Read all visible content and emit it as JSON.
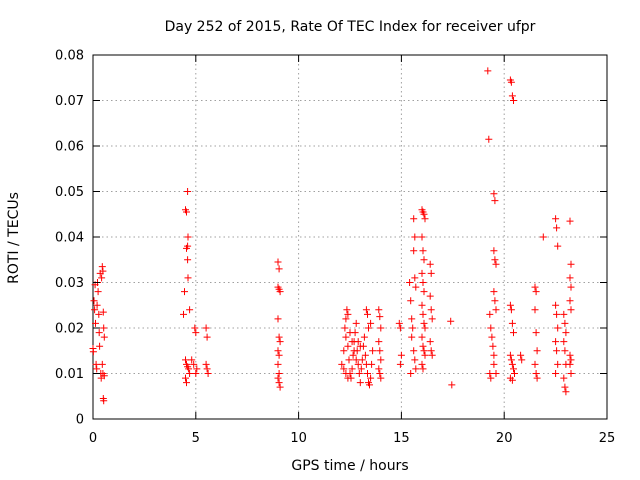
{
  "chart_data": {
    "type": "scatter",
    "title": "Day 252 of 2015, Rate Of TEC Index for receiver ufpr",
    "xlabel": "GPS time / hours",
    "ylabel": "ROTI / TECUs",
    "xlim": [
      0,
      25
    ],
    "ylim": [
      0,
      0.08
    ],
    "xticks": [
      "0",
      "5",
      "10",
      "15",
      "20",
      "25"
    ],
    "yticks": [
      "0",
      "0.01",
      "0.02",
      "0.03",
      "0.04",
      "0.05",
      "0.06",
      "0.07",
      "0.08"
    ],
    "grid": true,
    "legend": "none",
    "marker": "+",
    "color": "#ff0000",
    "points": [
      [
        0.0,
        0.0155
      ],
      [
        0.02,
        0.0148
      ],
      [
        0.05,
        0.026
      ],
      [
        0.08,
        0.024
      ],
      [
        0.1,
        0.0295
      ],
      [
        0.12,
        0.021
      ],
      [
        0.15,
        0.012
      ],
      [
        0.18,
        0.011
      ],
      [
        0.2,
        0.025
      ],
      [
        0.22,
        0.03
      ],
      [
        0.25,
        0.028
      ],
      [
        0.28,
        0.023
      ],
      [
        0.3,
        0.019
      ],
      [
        0.32,
        0.016
      ],
      [
        0.35,
        0.032
      ],
      [
        0.38,
        0.01
      ],
      [
        0.4,
        0.009
      ],
      [
        0.42,
        0.031
      ],
      [
        0.45,
        0.0335
      ],
      [
        0.48,
        0.0325
      ],
      [
        0.5,
        0.0235
      ],
      [
        0.52,
        0.02
      ],
      [
        0.55,
        0.018
      ],
      [
        0.48,
        0.01
      ],
      [
        0.5,
        0.0045
      ],
      [
        0.52,
        0.004
      ],
      [
        0.55,
        0.0095
      ],
      [
        0.45,
        0.012
      ],
      [
        4.4,
        0.023
      ],
      [
        4.45,
        0.028
      ],
      [
        4.5,
        0.046
      ],
      [
        4.55,
        0.0455
      ],
      [
        4.6,
        0.05
      ],
      [
        4.55,
        0.0375
      ],
      [
        4.6,
        0.038
      ],
      [
        4.62,
        0.04
      ],
      [
        4.6,
        0.035
      ],
      [
        4.62,
        0.031
      ],
      [
        4.5,
        0.013
      ],
      [
        4.55,
        0.012
      ],
      [
        4.6,
        0.0115
      ],
      [
        4.65,
        0.011
      ],
      [
        4.7,
        0.01
      ],
      [
        4.5,
        0.009
      ],
      [
        4.55,
        0.008
      ],
      [
        4.7,
        0.024
      ],
      [
        4.8,
        0.013
      ],
      [
        4.9,
        0.012
      ],
      [
        4.95,
        0.02
      ],
      [
        5.0,
        0.019
      ],
      [
        5.05,
        0.011
      ],
      [
        5.0,
        0.01
      ],
      [
        5.5,
        0.02
      ],
      [
        5.55,
        0.018
      ],
      [
        5.5,
        0.012
      ],
      [
        5.55,
        0.011
      ],
      [
        5.6,
        0.01
      ],
      [
        9.0,
        0.0345
      ],
      [
        9.05,
        0.033
      ],
      [
        9.0,
        0.029
      ],
      [
        9.05,
        0.0285
      ],
      [
        9.1,
        0.028
      ],
      [
        9.0,
        0.022
      ],
      [
        9.05,
        0.018
      ],
      [
        9.1,
        0.017
      ],
      [
        9.0,
        0.015
      ],
      [
        9.05,
        0.014
      ],
      [
        9.0,
        0.012
      ],
      [
        9.05,
        0.01
      ],
      [
        9.0,
        0.009
      ],
      [
        9.05,
        0.008
      ],
      [
        9.1,
        0.007
      ],
      [
        12.1,
        0.012
      ],
      [
        12.2,
        0.015
      ],
      [
        12.25,
        0.02
      ],
      [
        12.3,
        0.022
      ],
      [
        12.35,
        0.024
      ],
      [
        12.4,
        0.016
      ],
      [
        12.45,
        0.013
      ],
      [
        12.5,
        0.01
      ],
      [
        12.55,
        0.009
      ],
      [
        12.6,
        0.011
      ],
      [
        12.65,
        0.014
      ],
      [
        12.7,
        0.017
      ],
      [
        12.75,
        0.019
      ],
      [
        12.8,
        0.021
      ],
      [
        12.85,
        0.015
      ],
      [
        12.9,
        0.012
      ],
      [
        12.95,
        0.01
      ],
      [
        13.0,
        0.008
      ],
      [
        13.05,
        0.011
      ],
      [
        13.1,
        0.013
      ],
      [
        13.15,
        0.016
      ],
      [
        13.2,
        0.018
      ],
      [
        13.25,
        0.014
      ],
      [
        13.3,
        0.012
      ],
      [
        13.35,
        0.01
      ],
      [
        13.4,
        0.008
      ],
      [
        13.45,
        0.0075
      ],
      [
        13.5,
        0.009
      ],
      [
        13.55,
        0.012
      ],
      [
        13.6,
        0.015
      ],
      [
        13.3,
        0.024
      ],
      [
        13.35,
        0.023
      ],
      [
        13.4,
        0.02
      ],
      [
        13.5,
        0.021
      ],
      [
        12.3,
        0.018
      ],
      [
        12.4,
        0.023
      ],
      [
        12.5,
        0.019
      ],
      [
        12.6,
        0.017
      ],
      [
        12.7,
        0.015
      ],
      [
        12.8,
        0.013
      ],
      [
        12.2,
        0.011
      ],
      [
        12.3,
        0.01
      ],
      [
        12.4,
        0.009
      ],
      [
        12.9,
        0.017
      ],
      [
        13.0,
        0.016
      ],
      [
        13.9,
        0.024
      ],
      [
        13.95,
        0.0225
      ],
      [
        14.0,
        0.02
      ],
      [
        13.9,
        0.017
      ],
      [
        13.95,
        0.015
      ],
      [
        14.0,
        0.013
      ],
      [
        13.9,
        0.011
      ],
      [
        13.95,
        0.01
      ],
      [
        14.0,
        0.009
      ],
      [
        14.9,
        0.021
      ],
      [
        14.95,
        0.02
      ],
      [
        15.0,
        0.014
      ],
      [
        14.95,
        0.012
      ],
      [
        15.4,
        0.03
      ],
      [
        15.45,
        0.026
      ],
      [
        15.5,
        0.022
      ],
      [
        15.55,
        0.02
      ],
      [
        15.5,
        0.018
      ],
      [
        15.6,
        0.044
      ],
      [
        15.65,
        0.04
      ],
      [
        15.6,
        0.037
      ],
      [
        15.65,
        0.031
      ],
      [
        15.7,
        0.029
      ],
      [
        15.6,
        0.015
      ],
      [
        15.65,
        0.013
      ],
      [
        15.7,
        0.011
      ],
      [
        15.45,
        0.01
      ],
      [
        16.0,
        0.046
      ],
      [
        16.05,
        0.0455
      ],
      [
        16.1,
        0.045
      ],
      [
        16.15,
        0.044
      ],
      [
        16.0,
        0.04
      ],
      [
        16.05,
        0.037
      ],
      [
        16.1,
        0.035
      ],
      [
        16.0,
        0.032
      ],
      [
        16.05,
        0.03
      ],
      [
        16.1,
        0.028
      ],
      [
        16.0,
        0.025
      ],
      [
        16.05,
        0.023
      ],
      [
        16.1,
        0.021
      ],
      [
        16.15,
        0.02
      ],
      [
        16.0,
        0.018
      ],
      [
        16.05,
        0.016
      ],
      [
        16.1,
        0.015
      ],
      [
        16.15,
        0.014
      ],
      [
        16.0,
        0.012
      ],
      [
        16.05,
        0.011
      ],
      [
        16.4,
        0.034
      ],
      [
        16.45,
        0.032
      ],
      [
        16.4,
        0.027
      ],
      [
        16.45,
        0.024
      ],
      [
        16.5,
        0.022
      ],
      [
        16.4,
        0.017
      ],
      [
        16.45,
        0.015
      ],
      [
        16.5,
        0.014
      ],
      [
        17.4,
        0.0215
      ],
      [
        17.45,
        0.0075
      ],
      [
        19.2,
        0.0765
      ],
      [
        19.25,
        0.0615
      ],
      [
        19.5,
        0.0495
      ],
      [
        19.55,
        0.048
      ],
      [
        19.5,
        0.037
      ],
      [
        19.55,
        0.035
      ],
      [
        19.6,
        0.034
      ],
      [
        19.5,
        0.028
      ],
      [
        19.55,
        0.026
      ],
      [
        19.6,
        0.024
      ],
      [
        19.3,
        0.023
      ],
      [
        19.35,
        0.02
      ],
      [
        19.4,
        0.018
      ],
      [
        19.45,
        0.016
      ],
      [
        19.5,
        0.014
      ],
      [
        19.3,
        0.01
      ],
      [
        19.35,
        0.009
      ],
      [
        19.5,
        0.012
      ],
      [
        19.6,
        0.01
      ],
      [
        20.3,
        0.0745
      ],
      [
        20.35,
        0.074
      ],
      [
        20.4,
        0.071
      ],
      [
        20.45,
        0.07
      ],
      [
        20.3,
        0.025
      ],
      [
        20.35,
        0.024
      ],
      [
        20.4,
        0.021
      ],
      [
        20.45,
        0.019
      ],
      [
        20.3,
        0.014
      ],
      [
        20.35,
        0.013
      ],
      [
        20.4,
        0.012
      ],
      [
        20.45,
        0.011
      ],
      [
        20.5,
        0.01
      ],
      [
        20.3,
        0.009
      ],
      [
        20.4,
        0.0085
      ],
      [
        20.8,
        0.014
      ],
      [
        20.85,
        0.013
      ],
      [
        21.5,
        0.029
      ],
      [
        21.55,
        0.028
      ],
      [
        21.5,
        0.024
      ],
      [
        21.55,
        0.019
      ],
      [
        21.6,
        0.015
      ],
      [
        21.5,
        0.012
      ],
      [
        21.55,
        0.01
      ],
      [
        21.6,
        0.009
      ],
      [
        21.9,
        0.04
      ],
      [
        22.5,
        0.044
      ],
      [
        22.55,
        0.042
      ],
      [
        22.6,
        0.038
      ],
      [
        22.5,
        0.025
      ],
      [
        22.55,
        0.023
      ],
      [
        22.6,
        0.02
      ],
      [
        22.5,
        0.017
      ],
      [
        22.55,
        0.015
      ],
      [
        22.6,
        0.012
      ],
      [
        22.5,
        0.01
      ],
      [
        22.9,
        0.023
      ],
      [
        22.95,
        0.021
      ],
      [
        23.0,
        0.019
      ],
      [
        22.9,
        0.017
      ],
      [
        22.95,
        0.015
      ],
      [
        23.0,
        0.012
      ],
      [
        22.9,
        0.009
      ],
      [
        22.95,
        0.007
      ],
      [
        23.0,
        0.006
      ],
      [
        23.2,
        0.0435
      ],
      [
        23.25,
        0.034
      ],
      [
        23.2,
        0.031
      ],
      [
        23.25,
        0.029
      ],
      [
        23.2,
        0.026
      ],
      [
        23.25,
        0.024
      ],
      [
        23.2,
        0.014
      ],
      [
        23.25,
        0.013
      ],
      [
        23.2,
        0.012
      ],
      [
        23.25,
        0.01
      ]
    ]
  }
}
